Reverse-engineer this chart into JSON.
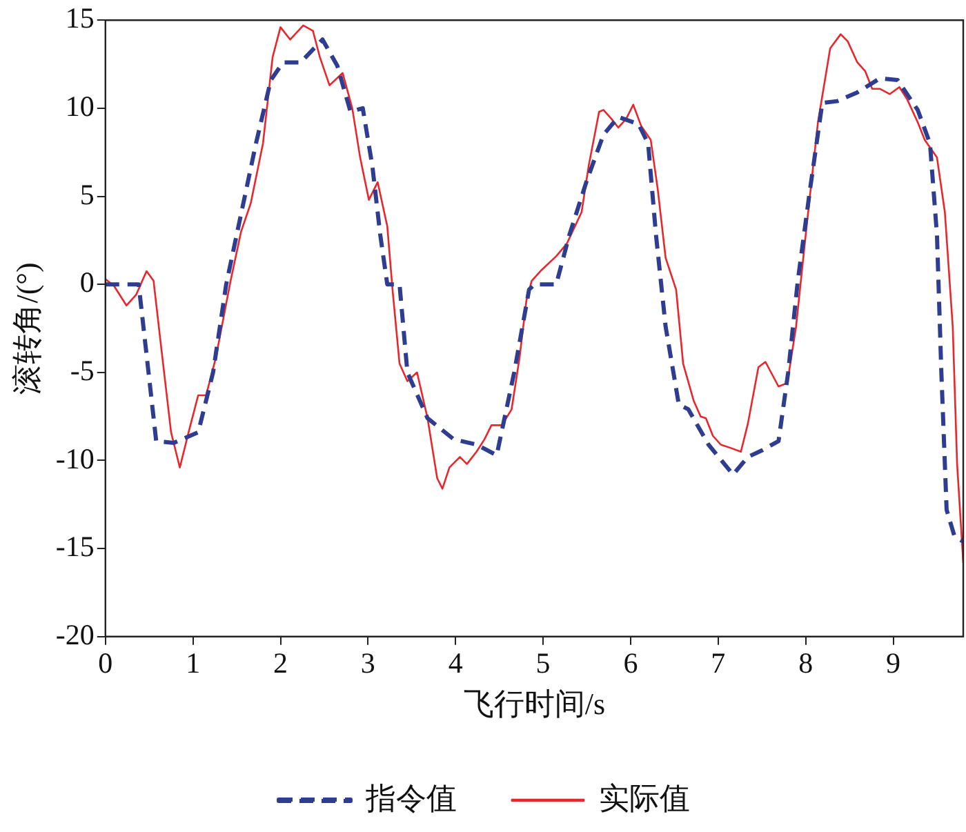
{
  "chart_data": {
    "type": "line",
    "xlabel": "飞行时间/s",
    "ylabel": "滚转角/(°)",
    "xlim": [
      0,
      9.8
    ],
    "xticks": [
      0,
      1,
      2,
      3,
      4,
      5,
      6,
      7,
      8,
      9
    ],
    "ylim": [
      -20,
      15
    ],
    "yticks": [
      -20,
      -15,
      -10,
      -5,
      0,
      5,
      10,
      15
    ],
    "grid": false,
    "legend": "bottom",
    "marker": "none",
    "series": [
      {
        "name": "指令值",
        "color": "#2e3d8f",
        "line_style": "dashed",
        "x": [
          0,
          0.38,
          0.58,
          0.78,
          1.06,
          1.23,
          1.38,
          1.55,
          1.72,
          1.89,
          2.03,
          2.23,
          2.48,
          2.65,
          2.8,
          2.94,
          3.05,
          3.14,
          3.22,
          3.36,
          3.45,
          3.68,
          3.98,
          4.24,
          4.47,
          4.67,
          4.84,
          4.9,
          5.15,
          5.3,
          5.5,
          5.69,
          5.86,
          6.09,
          6.2,
          6.29,
          6.4,
          6.55,
          6.66,
          6.89,
          7.17,
          7.34,
          7.51,
          7.69,
          7.8,
          7.91,
          8.05,
          8.19,
          8.36,
          8.59,
          8.85,
          9.05,
          9.28,
          9.42,
          9.5,
          9.55,
          9.61,
          9.7,
          9.8
        ],
        "values": [
          0,
          0,
          -8.9,
          -9,
          -8.4,
          -5,
          0,
          4,
          8,
          11.6,
          12.6,
          12.6,
          13.9,
          12.4,
          9.8,
          10,
          6.7,
          2.8,
          0,
          0,
          -5,
          -7.6,
          -8.8,
          -9.1,
          -9.7,
          -5,
          -0.3,
          0,
          0,
          2.8,
          5.9,
          8.5,
          9.5,
          9.1,
          8,
          2.8,
          -2.4,
          -6.8,
          -7.1,
          -9.1,
          -10.8,
          -9.8,
          -9.4,
          -8.9,
          -5,
          0.2,
          5.4,
          10.3,
          10.4,
          10.9,
          11.7,
          11.6,
          9.9,
          8,
          2.8,
          -5,
          -12.8,
          -14.3,
          -14.6
        ]
      },
      {
        "name": "实际值",
        "color": "#e8262b",
        "line_style": "solid",
        "x": [
          0,
          0.1,
          0.24,
          0.35,
          0.47,
          0.55,
          0.64,
          0.75,
          0.85,
          0.95,
          1.06,
          1.15,
          1.26,
          1.43,
          1.55,
          1.66,
          1.8,
          1.91,
          2.0,
          2.11,
          2.26,
          2.37,
          2.45,
          2.56,
          2.71,
          2.82,
          2.91,
          3.01,
          3.11,
          3.22,
          3.28,
          3.36,
          3.45,
          3.56,
          3.68,
          3.79,
          3.85,
          3.93,
          4.05,
          4.13,
          4.24,
          4.33,
          4.41,
          4.53,
          4.64,
          4.73,
          4.81,
          4.87,
          4.98,
          5.15,
          5.27,
          5.44,
          5.52,
          5.64,
          5.69,
          5.78,
          5.86,
          5.95,
          6.03,
          6.12,
          6.23,
          6.31,
          6.4,
          6.52,
          6.6,
          6.72,
          6.8,
          6.86,
          6.94,
          7.03,
          7.15,
          7.26,
          7.34,
          7.46,
          7.54,
          7.69,
          7.79,
          7.89,
          8.0,
          8.14,
          8.28,
          8.4,
          8.48,
          8.59,
          8.68,
          8.76,
          8.85,
          8.96,
          9.07,
          9.16,
          9.28,
          9.36,
          9.5,
          9.59,
          9.68,
          9.73,
          9.8
        ],
        "values": [
          0.3,
          -0.1,
          -1.2,
          -0.6,
          0.75,
          0.2,
          -3.7,
          -8.4,
          -10.4,
          -8.4,
          -6.3,
          -6.3,
          -4.2,
          0.2,
          3,
          4.6,
          8,
          12.9,
          14.6,
          13.9,
          14.7,
          14.4,
          12.9,
          11.3,
          12,
          10,
          7.2,
          4.8,
          5.8,
          3.3,
          -0.3,
          -4.5,
          -5.5,
          -5,
          -7.6,
          -11,
          -11.6,
          -10.4,
          -9.8,
          -10.2,
          -9.5,
          -8.8,
          -8,
          -8,
          -7.1,
          -4.2,
          -0.9,
          0.2,
          0.8,
          1.6,
          2.3,
          4.1,
          6.7,
          9.8,
          9.9,
          9.4,
          8.9,
          9.4,
          10.2,
          9,
          8.2,
          5.4,
          1.5,
          -0.3,
          -4.5,
          -6.6,
          -7.5,
          -7.6,
          -8.6,
          -9.1,
          -9.3,
          -9.5,
          -7.9,
          -4.7,
          -4.4,
          -5.8,
          -5.6,
          -2.4,
          2.8,
          9.2,
          13.4,
          14.2,
          13.8,
          12.6,
          12.1,
          11.1,
          11.1,
          10.8,
          11.2,
          10.5,
          9.2,
          8.2,
          7.2,
          4.1,
          -2.4,
          -10.2,
          -15.8
        ]
      }
    ]
  }
}
